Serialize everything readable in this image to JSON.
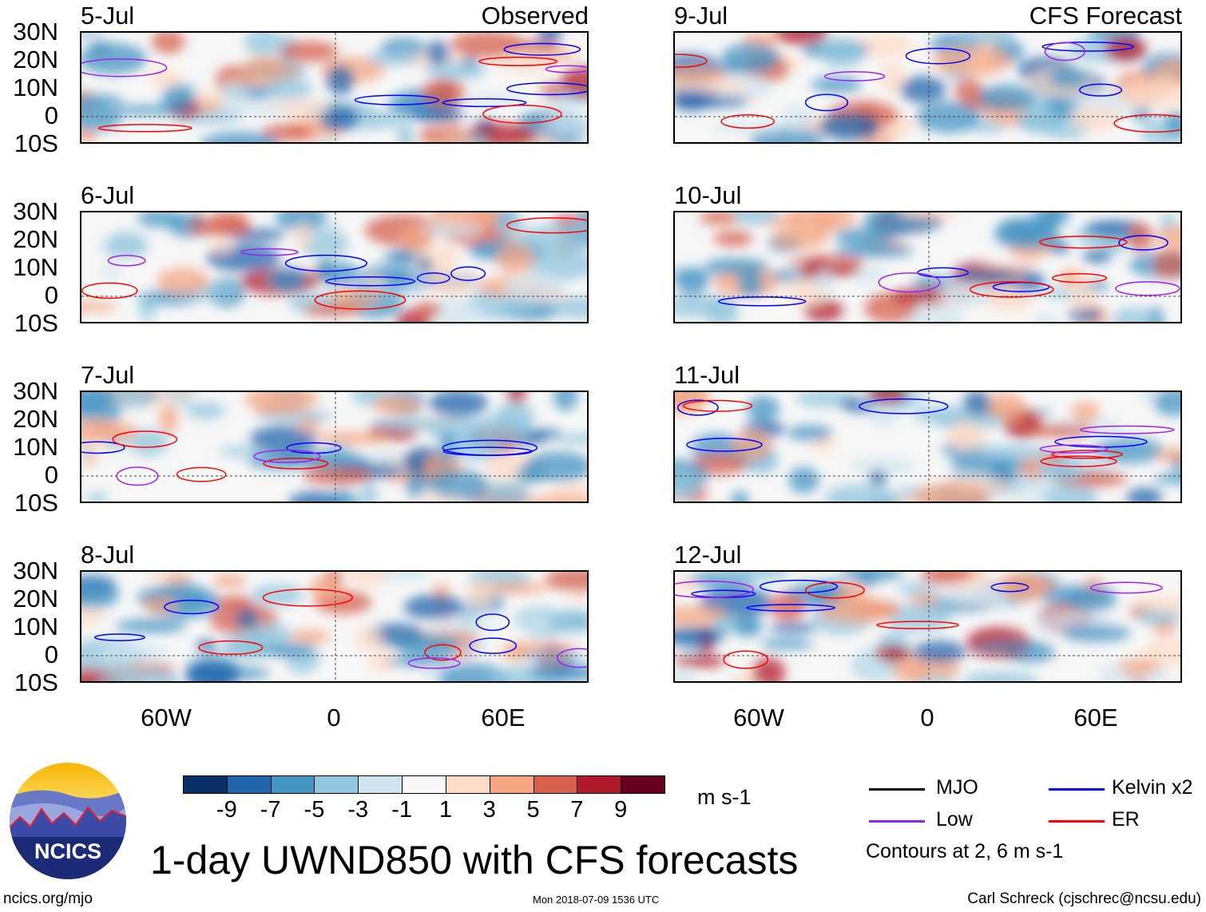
{
  "title": "1-day UWND850 with CFS forecasts",
  "footer": {
    "left": "ncics.org/mjo",
    "center": "Mon 2018-07-09 1536 UTC",
    "right": "Carl Schreck (cjschrec@ncsu.edu)"
  },
  "logo": {
    "text": "NCICS"
  },
  "columns": {
    "observed": "Observed",
    "forecast": "CFS Forecast"
  },
  "panels": [
    {
      "date": "5-Jul",
      "column": "observed"
    },
    {
      "date": "6-Jul",
      "column": "observed"
    },
    {
      "date": "7-Jul",
      "column": "observed"
    },
    {
      "date": "8-Jul",
      "column": "observed"
    },
    {
      "date": "9-Jul",
      "column": "forecast"
    },
    {
      "date": "10-Jul",
      "column": "forecast"
    },
    {
      "date": "11-Jul",
      "column": "forecast"
    },
    {
      "date": "12-Jul",
      "column": "forecast"
    }
  ],
  "lat_labels": [
    "30N",
    "20N",
    "10N",
    "0",
    "10S"
  ],
  "lon_labels": [
    "60W",
    "0",
    "60E"
  ],
  "colorbar": {
    "labels": [
      "-9",
      "-7",
      "-5",
      "-3",
      "-1",
      "1",
      "3",
      "5",
      "7",
      "9"
    ],
    "colors": [
      "#0a3068",
      "#2166ac",
      "#4393c3",
      "#92c5de",
      "#d1e5f0",
      "#f7f7f7",
      "#fddbc7",
      "#f4a582",
      "#d6604d",
      "#b2182b",
      "#67001f"
    ],
    "units": "m s-1"
  },
  "legend": {
    "items": [
      {
        "label": "MJO",
        "color": "#000000"
      },
      {
        "label": "Kelvin x2",
        "color": "#0000ff"
      },
      {
        "label": "Low",
        "color": "#a020f0"
      },
      {
        "label": "ER",
        "color": "#ff0000"
      }
    ],
    "note": "Contours at 2, 6 m s-1"
  }
}
